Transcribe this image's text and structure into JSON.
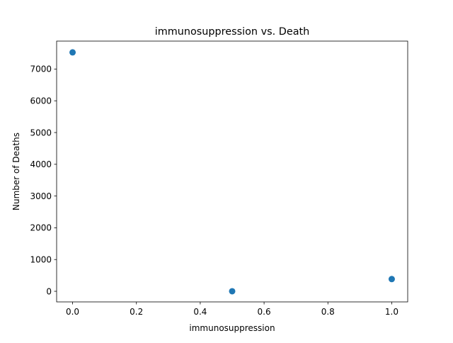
{
  "chart_data": {
    "type": "scatter",
    "title": "immunosuppression vs. Death",
    "xlabel": "immunosuppression",
    "ylabel": "Number of Deaths",
    "xlim": [
      -0.05,
      1.05
    ],
    "ylim": [
      -334,
      7880
    ],
    "xticks": [
      0.0,
      0.2,
      0.4,
      0.6,
      0.8,
      1.0
    ],
    "xtick_labels": [
      "0.0",
      "0.2",
      "0.4",
      "0.6",
      "0.8",
      "1.0"
    ],
    "yticks": [
      0,
      1000,
      2000,
      3000,
      4000,
      5000,
      6000,
      7000
    ],
    "ytick_labels": [
      "0",
      "1000",
      "2000",
      "3000",
      "4000",
      "5000",
      "6000",
      "7000"
    ],
    "points": [
      {
        "x": 0.0,
        "y": 7525
      },
      {
        "x": 0.5,
        "y": 2
      },
      {
        "x": 1.0,
        "y": 385
      }
    ],
    "marker_color": "#1f77b4",
    "grid": false,
    "legend": "none"
  }
}
